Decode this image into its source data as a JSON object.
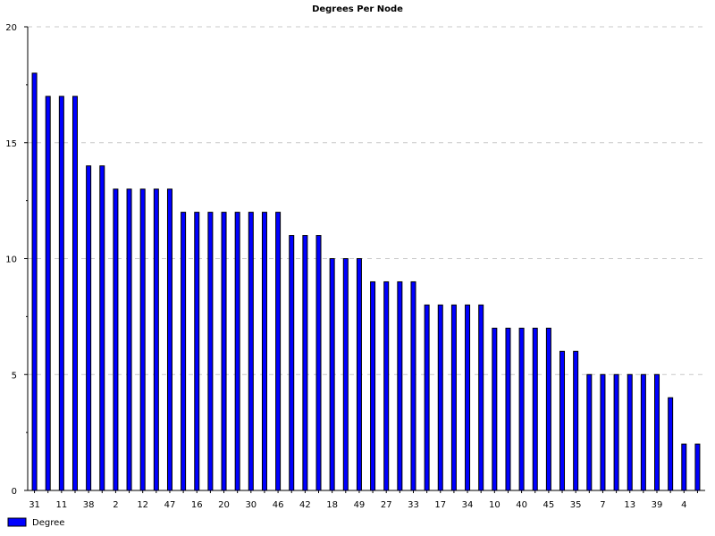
{
  "chart_data": {
    "type": "bar",
    "title": "Degrees Per Node",
    "xlabel": "",
    "ylabel": "",
    "ylim": [
      0,
      20
    ],
    "y_major_ticks": [
      0,
      5,
      10,
      15,
      20
    ],
    "y_minor_ticks": [
      2.5,
      7.5,
      12.5,
      17.5
    ],
    "grid": true,
    "legend_position": "bottom-left",
    "colors": {
      "bar": "#0000ff",
      "bar_edge": "#000000",
      "grid": "#c8c8c8"
    },
    "categories": [
      "31",
      "",
      "11",
      "",
      "38",
      "",
      "2",
      "",
      "12",
      "",
      "47",
      "",
      "16",
      "",
      "20",
      "",
      "30",
      "",
      "46",
      "",
      "42",
      "",
      "18",
      "",
      "49",
      "",
      "27",
      "",
      "33",
      "",
      "17",
      "",
      "34",
      "",
      "10",
      "",
      "40",
      "",
      "45",
      "",
      "35",
      "",
      "7",
      "",
      "13",
      "",
      "39",
      "",
      "4",
      ""
    ],
    "series": [
      {
        "name": "Degree",
        "values": [
          18,
          17,
          17,
          17,
          14,
          14,
          13,
          13,
          13,
          13,
          13,
          12,
          12,
          12,
          12,
          12,
          12,
          12,
          12,
          11,
          11,
          11,
          10,
          10,
          10,
          9,
          9,
          9,
          9,
          8,
          8,
          8,
          8,
          8,
          7,
          7,
          7,
          7,
          7,
          6,
          6,
          5,
          5,
          5,
          5,
          5,
          5,
          4,
          2,
          2
        ]
      }
    ]
  }
}
